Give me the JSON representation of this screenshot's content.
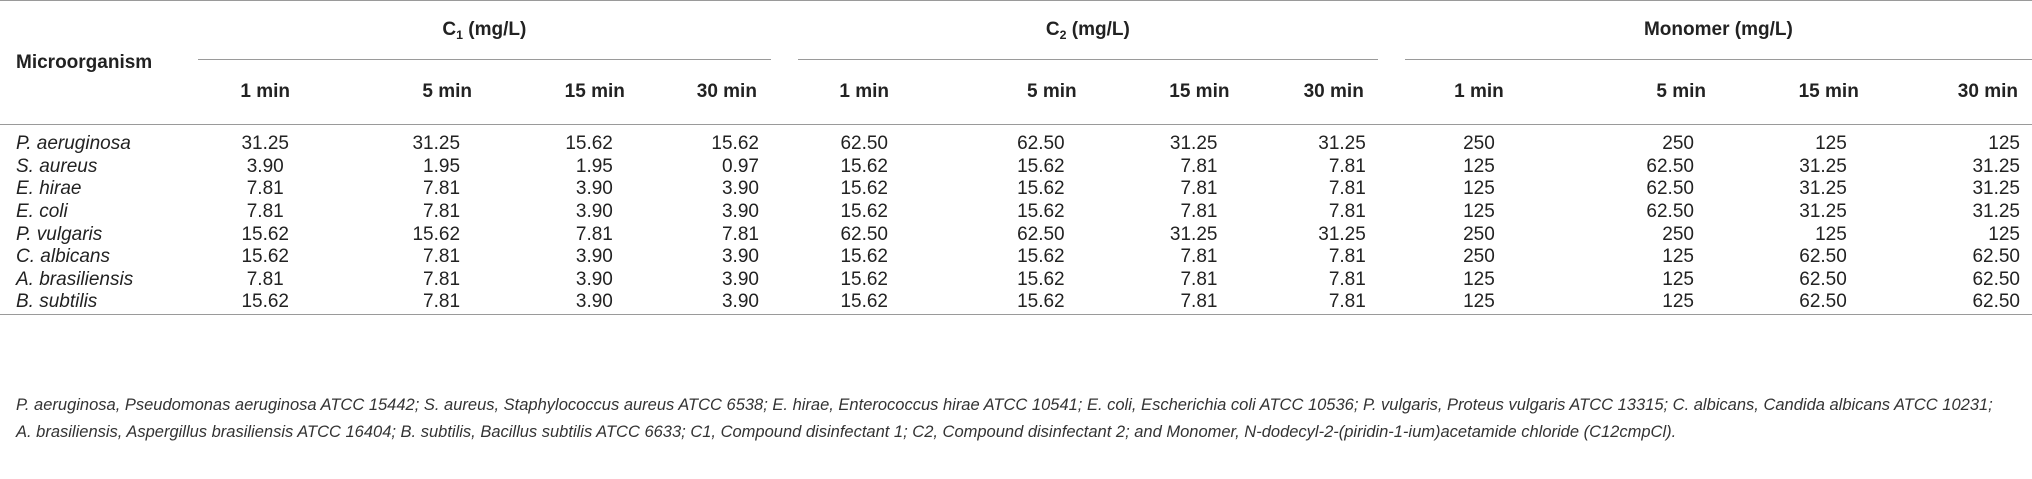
{
  "table": {
    "row_header": "Microorganism",
    "groups": [
      {
        "name_prefix": "C",
        "name_sub": "1",
        "name_suffix": " (mg/L)"
      },
      {
        "name_prefix": "C",
        "name_sub": "2",
        "name_suffix": " (mg/L)"
      },
      {
        "name_prefix": "Monomer",
        "name_sub": "",
        "name_suffix": " (mg/L)"
      }
    ],
    "times": [
      "1 min",
      "5 min",
      "15 min",
      "30 min"
    ],
    "rows": [
      {
        "organism": "P. aeruginosa",
        "values": [
          "31.25",
          "31.25",
          "15.62",
          "15.62",
          "62.50",
          "62.50",
          "31.25",
          "31.25",
          "250",
          "250",
          "125",
          "125"
        ]
      },
      {
        "organism": "S. aureus",
        "values": [
          "3.90",
          "1.95",
          "1.95",
          "0.97",
          "15.62",
          "15.62",
          "7.81",
          "7.81",
          "125",
          "62.50",
          "31.25",
          "31.25"
        ]
      },
      {
        "organism": "E. hirae",
        "values": [
          "7.81",
          "7.81",
          "3.90",
          "3.90",
          "15.62",
          "15.62",
          "7.81",
          "7.81",
          "125",
          "62.50",
          "31.25",
          "31.25"
        ]
      },
      {
        "organism": "E. coli",
        "values": [
          "7.81",
          "7.81",
          "3.90",
          "3.90",
          "15.62",
          "15.62",
          "7.81",
          "7.81",
          "125",
          "62.50",
          "31.25",
          "31.25"
        ]
      },
      {
        "organism": "P. vulgaris",
        "values": [
          "15.62",
          "15.62",
          "7.81",
          "7.81",
          "62.50",
          "62.50",
          "31.25",
          "31.25",
          "250",
          "250",
          "125",
          "125"
        ]
      },
      {
        "organism": "C. albicans",
        "values": [
          "15.62",
          "7.81",
          "3.90",
          "3.90",
          "15.62",
          "15.62",
          "7.81",
          "7.81",
          "250",
          "125",
          "62.50",
          "62.50"
        ]
      },
      {
        "organism": "A. brasiliensis",
        "values": [
          "7.81",
          "7.81",
          "3.90",
          "3.90",
          "15.62",
          "15.62",
          "7.81",
          "7.81",
          "125",
          "125",
          "62.50",
          "62.50"
        ]
      },
      {
        "organism": "B. subtilis",
        "values": [
          "15.62",
          "7.81",
          "3.90",
          "3.90",
          "15.62",
          "15.62",
          "7.81",
          "7.81",
          "125",
          "125",
          "62.50",
          "62.50"
        ]
      }
    ]
  },
  "footnote": "P. aeruginosa, Pseudomonas aeruginosa ATCC 15442; S. aureus, Staphylococcus aureus ATCC 6538; E. hirae, Enterococcus hirae ATCC 10541; E. coli, Escherichia coli ATCC 10536; P. vulgaris, Proteus vulgaris ATCC 13315; C. albicans, Candida albicans ATCC 10231; A. brasiliensis, Aspergillus brasiliensis ATCC 16404; B. subtilis, Bacillus subtilis ATCC 6633; C1, Compound disinfectant 1; C2, Compound disinfectant 2; and Monomer, N-dodecyl-2-(piridin-1-ium)acetamide chloride (C12cmpCl)."
}
